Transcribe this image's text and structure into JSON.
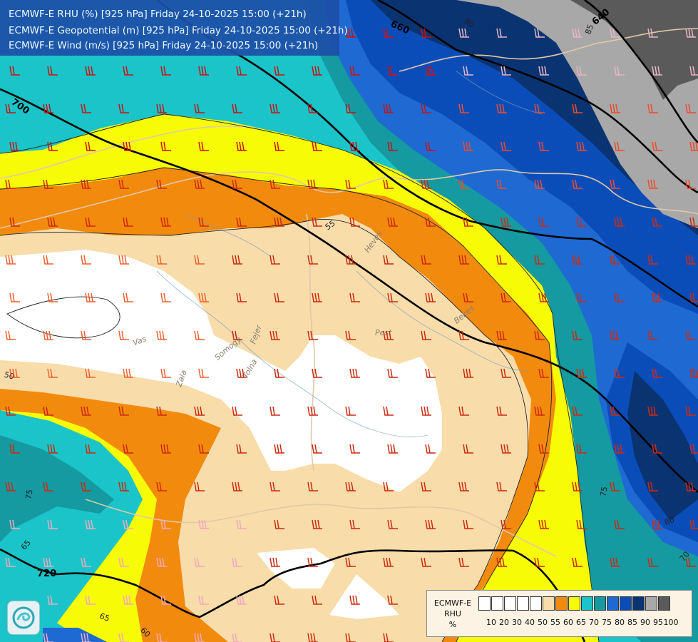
{
  "header": {
    "lines": [
      "ECMWF-E RHU (%) [925 hPa] Friday 24-10-2025 15:00 (+21h)",
      "ECMWF-E Geopotential (m) [925 hPa] Friday 24-10-2025 15:00 (+21h)",
      "ECMWF-E Wind (m/s) [925 hPa] Friday 24-10-2025 15:00 (+21h)"
    ]
  },
  "legend": {
    "title": [
      "ECMWF-E",
      "RHU",
      "%"
    ],
    "ticks": [
      "10",
      "20",
      "30",
      "40",
      "50",
      "55",
      "60",
      "65",
      "70",
      "75",
      "80",
      "85",
      "90",
      "95",
      "100"
    ],
    "colors": [
      "#ffffff",
      "#ffffff",
      "#ffffff",
      "#ffffff",
      "#ffffff",
      "#f8dcaa",
      "#f28a0e",
      "#f7fb05",
      "#1ac4c8",
      "#149aa0",
      "#1e6ad2",
      "#0b4db8",
      "#0a3372",
      "#a8a8a8",
      "#5a5a5a"
    ]
  },
  "map": {
    "geopotential_labels": [
      "660",
      "640",
      "700",
      "720"
    ],
    "rhu_contour_labels": [
      "90",
      "85",
      "55",
      "50",
      "75",
      "80",
      "70",
      "65",
      "60",
      "75",
      "65"
    ],
    "place_labels": [
      "Heves",
      "Pest",
      "Bekes",
      "Vas",
      "Somogy",
      "Zala",
      "Tolna",
      "Fejer"
    ],
    "colors": {
      "white": "#ffffff",
      "peach": "#f8dcaa",
      "orange": "#f28a0e",
      "yellow": "#f7fb05",
      "cyan": "#1ac4c8",
      "teal": "#149aa0",
      "blue": "#1e6ad2",
      "blue2": "#0b4db8",
      "navy": "#0a3372",
      "gray": "#a8a8a8",
      "darkgray": "#5a5a5a"
    }
  }
}
